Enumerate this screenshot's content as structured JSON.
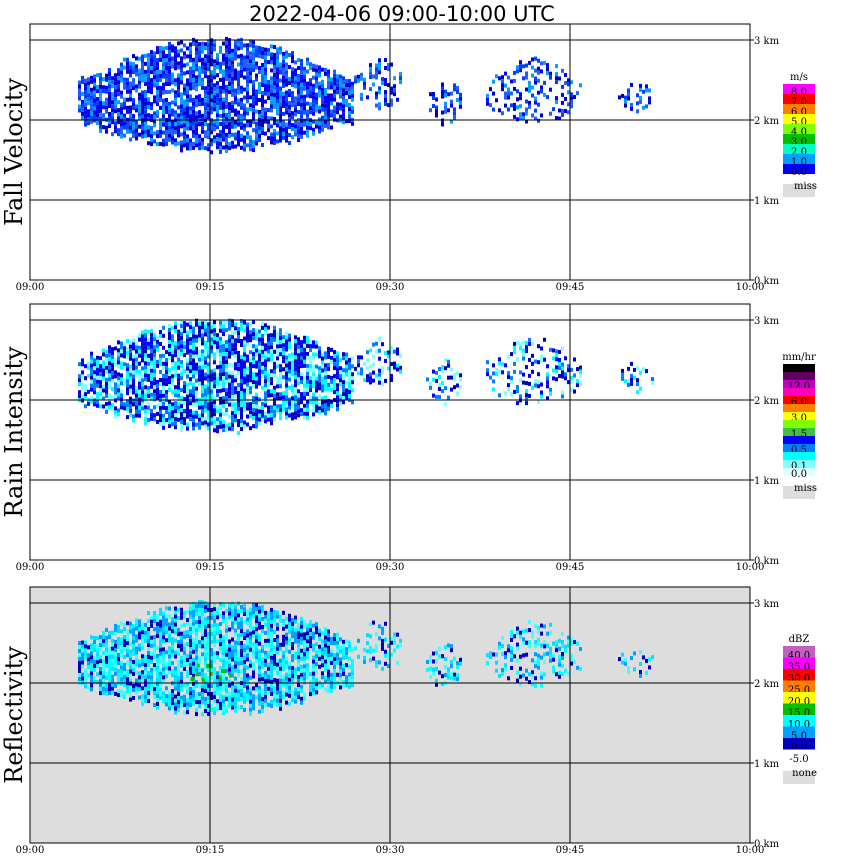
{
  "chart_data": {
    "type": "heatmap",
    "title": "2022-04-06  09:00-10:00 UTC",
    "x_ticks": [
      "09:00",
      "09:15",
      "09:30",
      "09:45",
      "10:00"
    ],
    "y_ticks": [
      "0 km",
      "1 km",
      "2 km",
      "3 km"
    ],
    "xlim": [
      "09:00",
      "10:00"
    ],
    "ylim_km": [
      0,
      3.2
    ],
    "grid": true,
    "echo": [
      {
        "t_start": "09:04",
        "t_end": "09:27",
        "h_base_km": 1.6,
        "h_top_km": 3.05
      },
      {
        "t_start": "09:27",
        "t_end": "09:31",
        "h_base_km": 2.15,
        "h_top_km": 2.8
      },
      {
        "t_start": "09:33",
        "t_end": "09:36",
        "h_base_km": 1.95,
        "h_top_km": 2.55
      },
      {
        "t_start": "09:38",
        "t_end": "09:46",
        "h_base_km": 1.95,
        "h_top_km": 2.8
      },
      {
        "t_start": "09:49",
        "t_end": "09:52",
        "h_base_km": 2.1,
        "h_top_km": 2.5
      }
    ],
    "panels": [
      {
        "ylabel": "Fall Velocity",
        "unit": "m/s",
        "background": "#ffffff",
        "colorbar": [
          {
            "label": "8.0",
            "color": "#ff00ff"
          },
          {
            "label": "7.0",
            "color": "#ff0000"
          },
          {
            "label": "6.0",
            "color": "#ff8000"
          },
          {
            "label": "5.0",
            "color": "#ffff00"
          },
          {
            "label": "4.0",
            "color": "#80ff00"
          },
          {
            "label": "3.0",
            "color": "#00c000"
          },
          {
            "label": "2.0",
            "color": "#00ffc0"
          },
          {
            "label": "1.0",
            "color": "#00a0ff"
          },
          {
            "label": "0.0",
            "color": "#0000ff"
          }
        ],
        "extra_label": "miss",
        "extra_color": "#dddddd"
      },
      {
        "ylabel": "Rain Intensity",
        "unit": "mm/hr",
        "background": "#ffffff",
        "colorbar": [
          {
            "label": "48.0",
            "color": "#000000"
          },
          {
            "label": "",
            "color": "#600060"
          },
          {
            "label": "12.0",
            "color": "#c000c0"
          },
          {
            "label": "",
            "color": "#ff00c0"
          },
          {
            "label": "6.0",
            "color": "#ff0000"
          },
          {
            "label": "",
            "color": "#ff8000"
          },
          {
            "label": "3.0",
            "color": "#ffff00"
          },
          {
            "label": "",
            "color": "#80ff00"
          },
          {
            "label": "1.5",
            "color": "#40c040"
          },
          {
            "label": "",
            "color": "#0000ff"
          },
          {
            "label": "0.5",
            "color": "#0080ff"
          },
          {
            "label": "",
            "color": "#00ffff"
          },
          {
            "label": "0.1",
            "color": "#80ffff"
          },
          {
            "label": "0.0",
            "color": "#e0ffff"
          }
        ],
        "extra_label": "miss",
        "extra_color": "#dddddd"
      },
      {
        "ylabel": "Reflectivity",
        "unit": "dBZ",
        "background": "#dddddd",
        "colorbar": [
          {
            "label": "40.0",
            "color": "#c060c0"
          },
          {
            "label": "35.0",
            "color": "#ff00ff"
          },
          {
            "label": "30.0",
            "color": "#ff0000"
          },
          {
            "label": "25.0",
            "color": "#ff8000"
          },
          {
            "label": "20.0",
            "color": "#ffff00"
          },
          {
            "label": "15.0",
            "color": "#00c000"
          },
          {
            "label": "10.0",
            "color": "#00ffff"
          },
          {
            "label": "5.0",
            "color": "#00a0ff"
          },
          {
            "label": "0.0",
            "color": "#0000c0"
          },
          {
            "label": "-5.0",
            "color": "#ffffff"
          }
        ],
        "extra_label": "none",
        "extra_color": "#dddddd"
      }
    ]
  }
}
